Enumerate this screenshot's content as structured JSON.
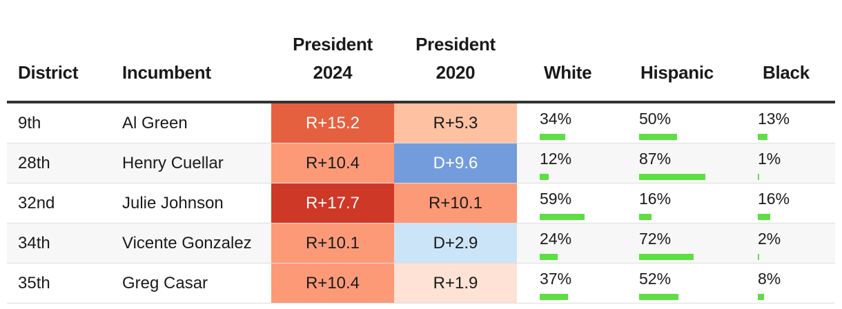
{
  "header": {
    "district": "District",
    "incumbent": "Incumbent",
    "president_2024_line1": "President",
    "president_2024_line2": "2024",
    "president_2020_line1": "President",
    "president_2020_line2": "2020",
    "white": "White",
    "hispanic": "Hispanic",
    "black": "Black"
  },
  "colors": {
    "bar": "#5ddf43",
    "rule": "#333333"
  },
  "rows": [
    {
      "district": "9th",
      "incumbent": "Al Green",
      "president_2024": {
        "label": "R+15.2",
        "bg": "#e4603f",
        "fg": "#ffffff"
      },
      "president_2020": {
        "label": "R+5.3",
        "bg": "#fec1a1",
        "fg": "#1a1a1a"
      },
      "white": {
        "label": "34%",
        "value": 34
      },
      "hispanic": {
        "label": "50%",
        "value": 50
      },
      "black": {
        "label": "13%",
        "value": 13
      }
    },
    {
      "district": "28th",
      "incumbent": "Henry Cuellar",
      "president_2024": {
        "label": "R+10.4",
        "bg": "#fc9a78",
        "fg": "#1a1a1a"
      },
      "president_2020": {
        "label": "D+9.6",
        "bg": "#739cdc",
        "fg": "#ffffff"
      },
      "white": {
        "label": "12%",
        "value": 12
      },
      "hispanic": {
        "label": "87%",
        "value": 87
      },
      "black": {
        "label": "1%",
        "value": 1
      }
    },
    {
      "district": "32nd",
      "incumbent": "Julie Johnson",
      "president_2024": {
        "label": "R+17.7",
        "bg": "#cd3827",
        "fg": "#ffffff"
      },
      "president_2020": {
        "label": "R+10.1",
        "bg": "#fc9a78",
        "fg": "#1a1a1a"
      },
      "white": {
        "label": "59%",
        "value": 59
      },
      "hispanic": {
        "label": "16%",
        "value": 16
      },
      "black": {
        "label": "16%",
        "value": 16
      }
    },
    {
      "district": "34th",
      "incumbent": "Vicente Gonzalez",
      "president_2024": {
        "label": "R+10.1",
        "bg": "#fc9a78",
        "fg": "#1a1a1a"
      },
      "president_2020": {
        "label": "D+2.9",
        "bg": "#cce4f7",
        "fg": "#1a1a1a"
      },
      "white": {
        "label": "24%",
        "value": 24
      },
      "hispanic": {
        "label": "72%",
        "value": 72
      },
      "black": {
        "label": "2%",
        "value": 2
      }
    },
    {
      "district": "35th",
      "incumbent": "Greg Casar",
      "president_2024": {
        "label": "R+10.4",
        "bg": "#fc9a78",
        "fg": "#1a1a1a"
      },
      "president_2020": {
        "label": "R+1.9",
        "bg": "#fde2d5",
        "fg": "#1a1a1a"
      },
      "white": {
        "label": "37%",
        "value": 37
      },
      "hispanic": {
        "label": "52%",
        "value": 52
      },
      "black": {
        "label": "8%",
        "value": 8
      }
    }
  ]
}
